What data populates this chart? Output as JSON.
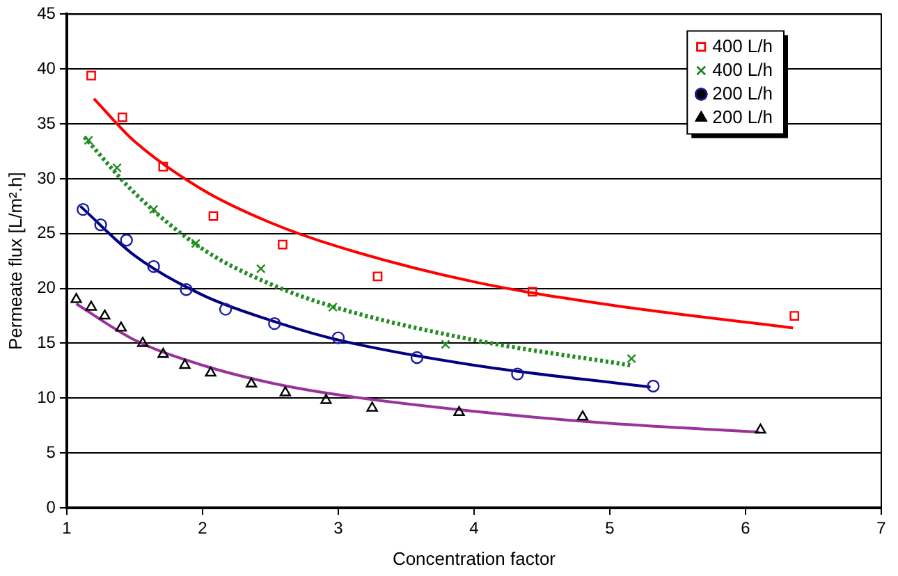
{
  "chart_data": {
    "type": "scatter",
    "xlabel": "Concentration factor",
    "ylabel": "Permeate flux [L/m².h]",
    "xlim": [
      1,
      7
    ],
    "xticks": [
      1,
      2,
      3,
      4,
      5,
      6,
      7
    ],
    "ylim": [
      0,
      45
    ],
    "yticks": [
      0,
      5,
      10,
      15,
      20,
      25,
      30,
      35,
      40,
      45
    ],
    "grid": "y",
    "legend": "top right",
    "series": [
      {
        "name": "400 L/h",
        "type": "scatter",
        "marker": "square",
        "color": "#ff0000",
        "x": [
          1.18,
          1.41,
          1.71,
          2.08,
          2.59,
          3.29,
          4.43,
          6.36
        ],
        "values": [
          39.4,
          35.6,
          31.1,
          26.6,
          24.0,
          21.1,
          19.7,
          17.5
        ]
      },
      {
        "name": "400 L/h",
        "type": "scatter",
        "marker": "cross",
        "color": "#228b22",
        "x": [
          1.16,
          1.37,
          1.64,
          1.95,
          2.43,
          2.96,
          3.79,
          5.16
        ],
        "values": [
          33.5,
          31.0,
          27.2,
          24.1,
          21.8,
          18.3,
          14.9,
          13.6
        ]
      },
      {
        "name": "200 L/h",
        "type": "scatter",
        "marker": "circle",
        "color": "#1a1aa0",
        "x": [
          1.12,
          1.25,
          1.44,
          1.64,
          1.88,
          2.17,
          2.53,
          3.0,
          3.58,
          4.32,
          5.32
        ],
        "values": [
          27.2,
          25.8,
          24.4,
          22.0,
          19.9,
          18.1,
          16.8,
          15.5,
          13.7,
          12.2,
          11.1
        ]
      },
      {
        "name": "200 L/h",
        "type": "scatter",
        "marker": "triangle",
        "color": "#000000",
        "x": [
          1.07,
          1.18,
          1.28,
          1.4,
          1.56,
          1.71,
          1.87,
          2.06,
          2.36,
          2.61,
          2.91,
          3.25,
          3.89,
          4.8,
          6.11
        ],
        "values": [
          19.0,
          18.3,
          17.5,
          16.4,
          15.0,
          14.0,
          13.0,
          12.3,
          11.3,
          10.5,
          9.8,
          9.1,
          8.7,
          8.3,
          7.1
        ]
      },
      {
        "type": "line",
        "marker": "none",
        "line_style": "solid",
        "color": "#ff0000",
        "x": [
          1.2,
          1.5,
          2,
          2.5,
          3,
          4,
          5,
          6.35
        ],
        "values": [
          37.3,
          33.4,
          29.0,
          26.0,
          23.8,
          20.6,
          18.5,
          16.4
        ]
      },
      {
        "type": "line",
        "marker": "none",
        "line_style": "dotted",
        "color": "#228b22",
        "x": [
          1.13,
          1.5,
          2,
          2.5,
          3,
          4,
          5.15
        ],
        "values": [
          33.8,
          28.7,
          23.6,
          20.4,
          18.2,
          15.3,
          13.0
        ]
      },
      {
        "type": "line",
        "marker": "none",
        "line_style": "solid",
        "color": "#000080",
        "x": [
          1.1,
          1.5,
          2,
          2.5,
          3,
          4,
          5.3
        ],
        "values": [
          27.5,
          23.0,
          19.4,
          17.1,
          15.3,
          13.0,
          11.0
        ]
      },
      {
        "type": "line",
        "marker": "none",
        "line_style": "solid",
        "color": "#993399",
        "x": [
          1.07,
          1.5,
          2,
          2.5,
          3,
          4,
          5,
          6.1
        ],
        "values": [
          18.6,
          15.3,
          13.0,
          11.4,
          10.3,
          8.8,
          7.7,
          6.9
        ]
      }
    ]
  }
}
